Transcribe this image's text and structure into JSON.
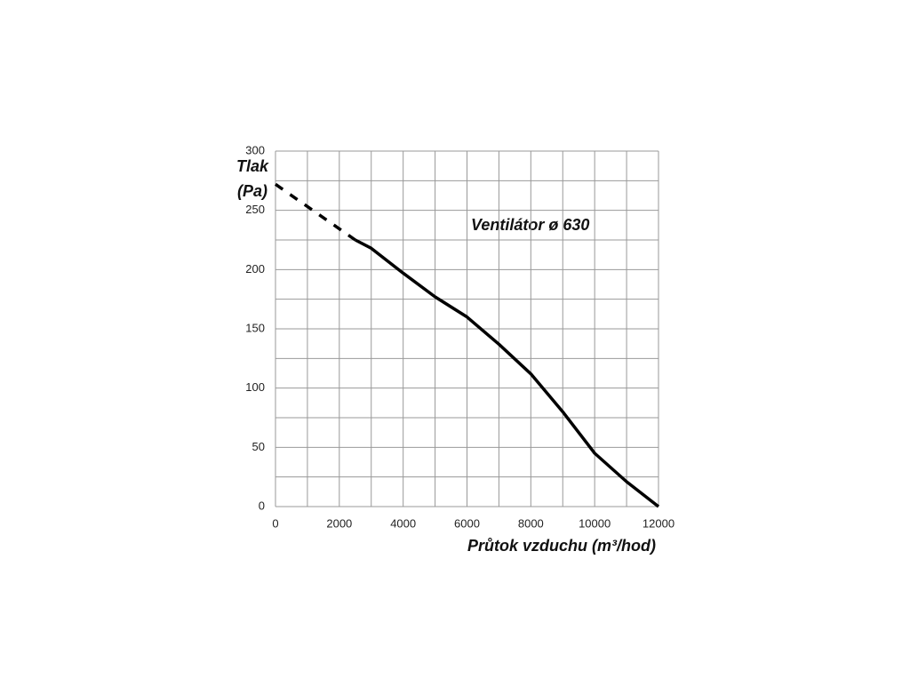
{
  "chart_data": {
    "type": "line",
    "title": "Ventilátor ø 630",
    "ylabel": [
      "Tlak",
      "(Pa)"
    ],
    "xlabel": "Průtok vzduchu (m³/hod)",
    "x": [
      0,
      2500,
      3000,
      4000,
      5000,
      6000,
      7000,
      8000,
      9000,
      10000,
      11000,
      12000
    ],
    "series": [
      {
        "color": "#000000",
        "style": "dashed",
        "values": [
          272,
          225,
          null,
          null,
          null,
          null,
          null,
          null,
          null,
          null,
          null,
          null
        ]
      },
      {
        "color": "#000000",
        "style": "solid",
        "values": [
          null,
          225,
          218,
          197,
          177,
          160,
          137,
          112,
          80,
          45,
          21,
          0
        ]
      }
    ],
    "xlim": [
      0,
      12000
    ],
    "xticks": [
      0,
      2000,
      4000,
      6000,
      8000,
      10000,
      12000
    ],
    "ylim": [
      0,
      300
    ],
    "yticks": [
      0,
      50,
      100,
      150,
      200,
      250,
      300
    ],
    "grid": true
  }
}
